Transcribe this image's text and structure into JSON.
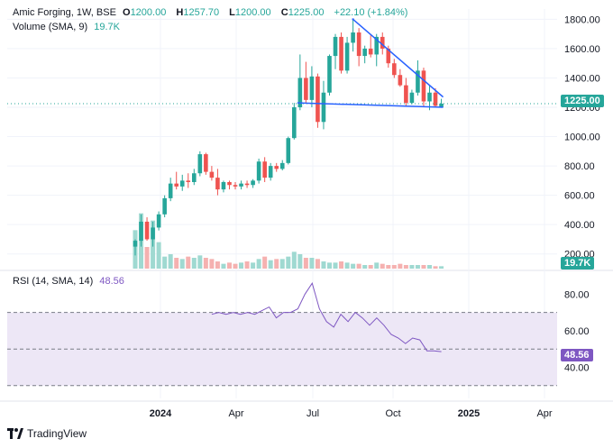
{
  "header": {
    "symbol": "Amic Forging, 1W, BSE",
    "open_label": "O",
    "open": "1200.00",
    "high_label": "H",
    "high": "1257.70",
    "low_label": "L",
    "low": "1200.00",
    "close_label": "C",
    "close": "1225.00",
    "change": "+22.10 (+1.84%)",
    "volume_label": "Volume (SMA, 9)",
    "volume_value": "19.7K",
    "rsi_label": "RSI (14, SMA, 14)",
    "rsi_value": "48.56"
  },
  "badges": {
    "price": "1225.00",
    "volume": "19.7K",
    "rsi": "48.56"
  },
  "footer": {
    "brand": "TradingView"
  },
  "colors": {
    "up": "#26a69a",
    "down": "#ef5350",
    "up_vol": "#9fd9d1",
    "down_vol": "#f5b1b0",
    "trend": "#2962ff",
    "rsi": "#7e57c2",
    "rsi_band": "#ede7f6",
    "grid": "#f0f3fa"
  },
  "chart_data": [
    {
      "type": "candlestick",
      "title": "Amic Forging, 1W, BSE",
      "x_ticks": [
        "2024",
        "Apr",
        "Jul",
        "Oct",
        "2025",
        "Apr"
      ],
      "y_ticks": [
        "200.00",
        "400.00",
        "600.00",
        "800.00",
        "1000.00",
        "1200.00",
        "1400.00",
        "1600.00",
        "1800.00"
      ],
      "ylim": [
        100,
        1870
      ],
      "grid": true,
      "last_close": 1225,
      "candles": [
        {
          "o": 250,
          "h": 300,
          "l": 190,
          "c": 290
        },
        {
          "o": 290,
          "h": 470,
          "l": 250,
          "c": 420
        },
        {
          "o": 420,
          "h": 450,
          "l": 290,
          "c": 300
        },
        {
          "o": 300,
          "h": 420,
          "l": 250,
          "c": 380
        },
        {
          "o": 380,
          "h": 490,
          "l": 360,
          "c": 470
        },
        {
          "o": 470,
          "h": 600,
          "l": 450,
          "c": 580
        },
        {
          "o": 580,
          "h": 720,
          "l": 560,
          "c": 680
        },
        {
          "o": 680,
          "h": 760,
          "l": 640,
          "c": 660
        },
        {
          "o": 660,
          "h": 740,
          "l": 630,
          "c": 700
        },
        {
          "o": 700,
          "h": 750,
          "l": 650,
          "c": 690
        },
        {
          "o": 690,
          "h": 780,
          "l": 670,
          "c": 750
        },
        {
          "o": 750,
          "h": 900,
          "l": 730,
          "c": 880
        },
        {
          "o": 880,
          "h": 890,
          "l": 740,
          "c": 760
        },
        {
          "o": 760,
          "h": 800,
          "l": 700,
          "c": 720
        },
        {
          "o": 720,
          "h": 780,
          "l": 600,
          "c": 640
        },
        {
          "o": 640,
          "h": 700,
          "l": 620,
          "c": 690
        },
        {
          "o": 690,
          "h": 700,
          "l": 640,
          "c": 670
        },
        {
          "o": 670,
          "h": 690,
          "l": 640,
          "c": 660
        },
        {
          "o": 660,
          "h": 700,
          "l": 640,
          "c": 680
        },
        {
          "o": 680,
          "h": 700,
          "l": 650,
          "c": 670
        },
        {
          "o": 670,
          "h": 710,
          "l": 650,
          "c": 700
        },
        {
          "o": 700,
          "h": 850,
          "l": 680,
          "c": 830
        },
        {
          "o": 830,
          "h": 860,
          "l": 690,
          "c": 720
        },
        {
          "o": 720,
          "h": 820,
          "l": 700,
          "c": 800
        },
        {
          "o": 800,
          "h": 820,
          "l": 760,
          "c": 780
        },
        {
          "o": 780,
          "h": 840,
          "l": 770,
          "c": 820
        },
        {
          "o": 820,
          "h": 1000,
          "l": 810,
          "c": 990
        },
        {
          "o": 990,
          "h": 1230,
          "l": 980,
          "c": 1200
        },
        {
          "o": 1200,
          "h": 1560,
          "l": 1180,
          "c": 1400
        },
        {
          "o": 1400,
          "h": 1510,
          "l": 1230,
          "c": 1250
        },
        {
          "o": 1250,
          "h": 1480,
          "l": 1200,
          "c": 1410
        },
        {
          "o": 1410,
          "h": 1430,
          "l": 1060,
          "c": 1100
        },
        {
          "o": 1100,
          "h": 1380,
          "l": 1050,
          "c": 1300
        },
        {
          "o": 1300,
          "h": 1560,
          "l": 1280,
          "c": 1550
        },
        {
          "o": 1550,
          "h": 1700,
          "l": 1460,
          "c": 1680
        },
        {
          "o": 1680,
          "h": 1710,
          "l": 1430,
          "c": 1450
        },
        {
          "o": 1450,
          "h": 1680,
          "l": 1430,
          "c": 1640
        },
        {
          "o": 1640,
          "h": 1800,
          "l": 1580,
          "c": 1710
        },
        {
          "o": 1710,
          "h": 1740,
          "l": 1480,
          "c": 1550
        },
        {
          "o": 1550,
          "h": 1620,
          "l": 1500,
          "c": 1600
        },
        {
          "o": 1600,
          "h": 1690,
          "l": 1540,
          "c": 1560
        },
        {
          "o": 1560,
          "h": 1700,
          "l": 1480,
          "c": 1680
        },
        {
          "o": 1680,
          "h": 1710,
          "l": 1560,
          "c": 1600
        },
        {
          "o": 1600,
          "h": 1620,
          "l": 1470,
          "c": 1500
        },
        {
          "o": 1500,
          "h": 1530,
          "l": 1400,
          "c": 1420
        },
        {
          "o": 1420,
          "h": 1460,
          "l": 1340,
          "c": 1350
        },
        {
          "o": 1350,
          "h": 1400,
          "l": 1210,
          "c": 1230
        },
        {
          "o": 1230,
          "h": 1320,
          "l": 1220,
          "c": 1300
        },
        {
          "o": 1300,
          "h": 1520,
          "l": 1280,
          "c": 1450
        },
        {
          "o": 1450,
          "h": 1470,
          "l": 1200,
          "c": 1240
        },
        {
          "o": 1240,
          "h": 1350,
          "l": 1180,
          "c": 1300
        },
        {
          "o": 1300,
          "h": 1330,
          "l": 1200,
          "c": 1210
        },
        {
          "o": 1200,
          "h": 1257.7,
          "l": 1200,
          "c": 1225
        }
      ],
      "volume": [
        32,
        46,
        18,
        40,
        22,
        10,
        12,
        9,
        8,
        10,
        9,
        11,
        9,
        8,
        6,
        4,
        5,
        4,
        5,
        6,
        5,
        8,
        10,
        7,
        8,
        8,
        10,
        14,
        12,
        9,
        9,
        8,
        6,
        5,
        5,
        6,
        5,
        4,
        4,
        3,
        3,
        5,
        4,
        3,
        3,
        4,
        3,
        3,
        3,
        3,
        3,
        2,
        2
      ]
    },
    {
      "type": "line",
      "title": "RSI (14, SMA, 14)",
      "y_ticks": [
        "40.00",
        "60.00",
        "80.00"
      ],
      "ylim": [
        23,
        92
      ],
      "band": [
        30,
        70
      ],
      "midline": 50,
      "last_value": 48.56,
      "start_index": 13,
      "values": [
        69,
        70,
        69,
        70,
        69,
        70,
        69,
        71,
        73,
        67,
        70,
        70,
        72,
        80,
        86,
        72,
        65,
        62,
        69,
        65,
        70,
        67,
        63,
        67,
        63,
        58,
        56,
        53,
        56,
        55,
        49,
        49,
        48.56
      ]
    }
  ]
}
